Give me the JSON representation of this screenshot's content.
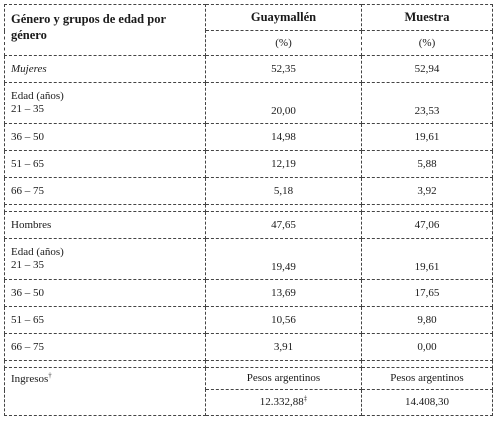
{
  "header": {
    "col1": "Género y grupos de edad por género",
    "col2": "Guaymallén",
    "col3": "Muestra",
    "unit2": "(%)",
    "unit3": "(%)"
  },
  "women": {
    "label": "Mujeres",
    "g": "52,35",
    "m": "52,94",
    "age_heading": "Edad (años)",
    "rows": [
      {
        "age": "21 – 35",
        "g": "20,00",
        "m": "23,53"
      },
      {
        "age": "36 – 50",
        "g": "14,98",
        "m": "19,61"
      },
      {
        "age": "51 – 65",
        "g": "12,19",
        "m": "5,88"
      },
      {
        "age": "66 – 75",
        "g": "5,18",
        "m": "3,92"
      }
    ]
  },
  "men": {
    "label": "Hombres",
    "g": "47,65",
    "m": "47,06",
    "age_heading": "Edad (años)",
    "rows": [
      {
        "age": "21 – 35",
        "g": "19,49",
        "m": "19,61"
      },
      {
        "age": "36 – 50",
        "g": "13,69",
        "m": "17,65"
      },
      {
        "age": "51 – 65",
        "g": "10,56",
        "m": "9,80"
      },
      {
        "age": "66 – 75",
        "g": "3,91",
        "m": "0,00"
      }
    ]
  },
  "income": {
    "label": "Ingresos",
    "label_mark": "†",
    "unit_g": "Pesos argentinos",
    "unit_m": "Pesos argentinos",
    "g": "12.332,88",
    "g_mark": "‡",
    "m": "14.408,30"
  }
}
